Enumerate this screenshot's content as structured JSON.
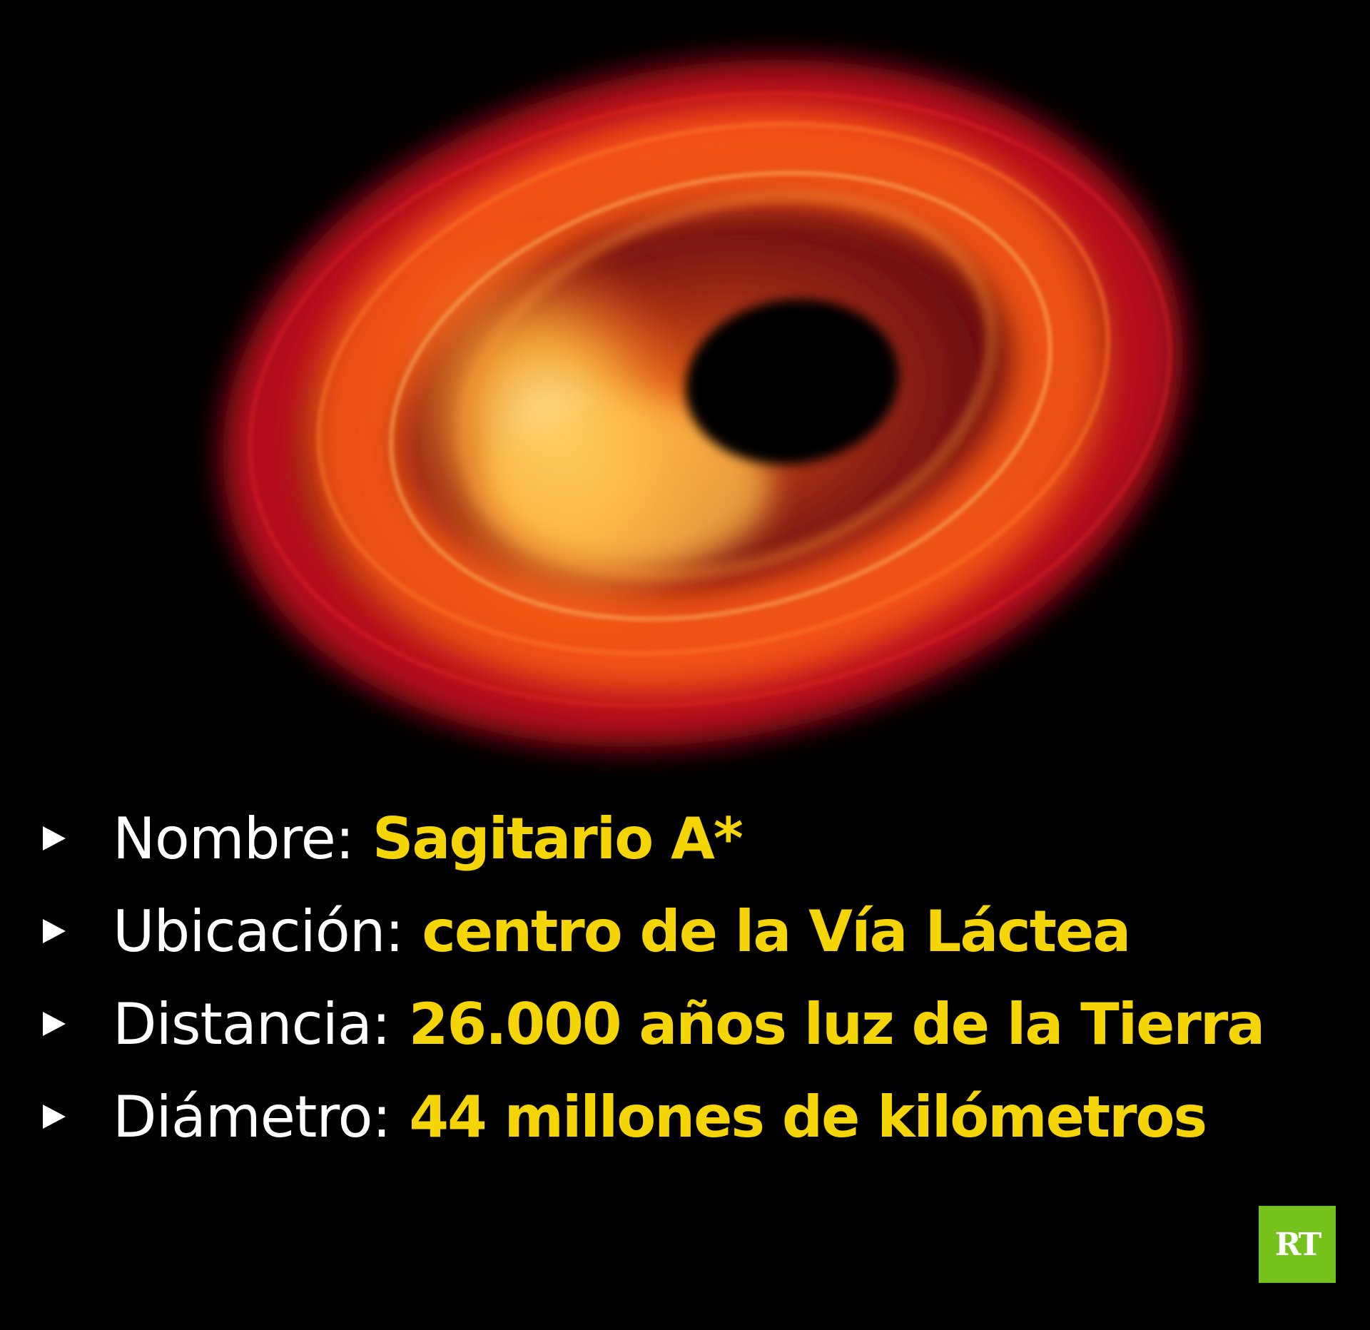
{
  "image": {
    "subject": "black-hole-illustration",
    "colors": {
      "background": "#000000",
      "ring_outer": "#b3101a",
      "ring_mid": "#ff5a14",
      "ring_bright": "#ffd36a",
      "shadow": "#000000"
    }
  },
  "facts": [
    {
      "label": "Nombre:",
      "value": "Sagitario A*"
    },
    {
      "label": "Ubicación:",
      "value": "centro de la Vía Láctea"
    },
    {
      "label": "Distancia:",
      "value": "26.000 años luz de la Tierra"
    },
    {
      "label": "Diámetro:",
      "value": "44 millones de kilómetros"
    }
  ],
  "colors": {
    "label_text": "#ffffff",
    "value_text": "#f5d506",
    "bullet": "#ffffff"
  },
  "logo": {
    "text": "RT",
    "background": "#74c21b"
  }
}
